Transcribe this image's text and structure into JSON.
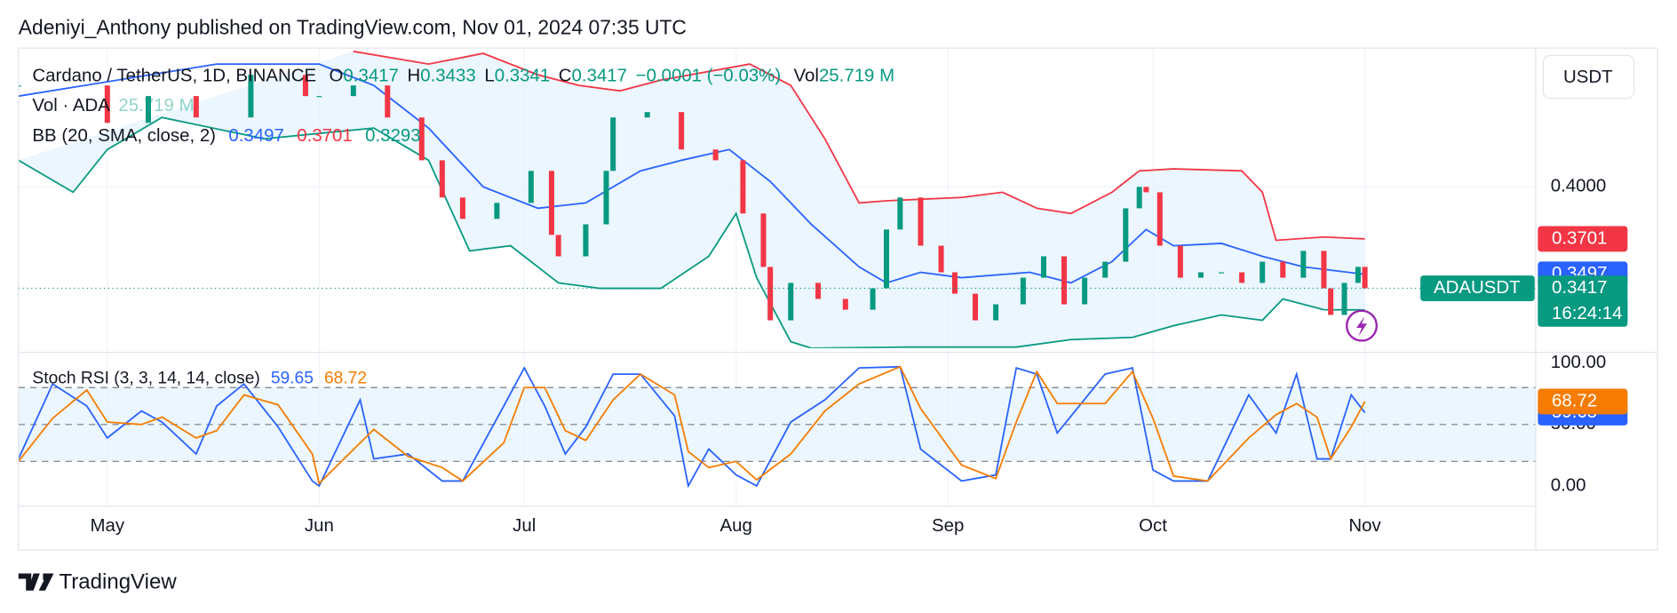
{
  "header": {
    "published": "Adeniyi_Anthony published on TradingView.com, Nov 01, 2024 07:35 UTC",
    "currency": "USDT",
    "brand": "TradingView"
  },
  "legend": {
    "symbol": "Cardano / TetherUS, 1D, BINANCE",
    "ohlc": [
      {
        "label": "O",
        "value": "0.3417"
      },
      {
        "label": "H",
        "value": "0.3433"
      },
      {
        "label": "L",
        "value": "0.3341"
      },
      {
        "label": "C",
        "value": "0.3417"
      }
    ],
    "change": "−0.0001 (−0.03%)",
    "vol_label": "Vol",
    "vol": "25.719 M",
    "vol_study": "Vol · ADA",
    "bb_study": "BB (20, SMA, close, 2)",
    "stoch_study": "Stoch RSI (3, 3, 14, 14, close)",
    "ticker": "ADAUSDT",
    "countdown": "16:24:14"
  },
  "chart_data": [
    {
      "type": "candlestick",
      "x": [
        0,
        13,
        19,
        26,
        34,
        42,
        44,
        49,
        54,
        59,
        62,
        65,
        70,
        75,
        78,
        79,
        83,
        86,
        87,
        92,
        97,
        102,
        106,
        109,
        110,
        113,
        117,
        121,
        125,
        127,
        129,
        132,
        135,
        137,
        140,
        143,
        147,
        150,
        153,
        156,
        159,
        162,
        164,
        165,
        167,
        170,
        173,
        176,
        179,
        182,
        185,
        188,
        191,
        192,
        194,
        196,
        197
      ],
      "close": [
        0.4583,
        0.4368,
        0.4522,
        0.4399,
        0.4644,
        0.4522,
        0.4522,
        0.4583,
        0.4399,
        0.4153,
        0.3939,
        0.3816,
        0.3908,
        0.4092,
        0.3724,
        0.3601,
        0.3785,
        0.4092,
        0.4399,
        0.443,
        0.4215,
        0.4153,
        0.3847,
        0.354,
        0.3233,
        0.3448,
        0.3356,
        0.3294,
        0.3417,
        0.3755,
        0.3939,
        0.3662,
        0.3509,
        0.3386,
        0.3233,
        0.3325,
        0.3478,
        0.3601,
        0.3325,
        0.3478,
        0.357,
        0.3877,
        0.4,
        0.3969,
        0.3662,
        0.3478,
        0.3509,
        0.3509,
        0.3448,
        0.357,
        0.3478,
        0.3632,
        0.3417,
        0.3264,
        0.3448,
        0.354,
        0.3417
      ],
      "up_color": "#089981",
      "down_color": "#f23645",
      "bb_upper": {
        "color": "#f23645",
        "x": [
          49,
          60,
          68,
          76,
          82,
          88,
          94,
          107,
          113,
          118,
          123,
          127,
          138,
          144,
          149,
          154,
          160,
          164,
          169,
          179,
          182,
          184,
          191,
          197
        ],
        "values": [
          0.4779,
          0.4706,
          0.4767,
          0.4644,
          0.4583,
          0.4552,
          0.4614,
          0.4706,
          0.4583,
          0.4276,
          0.3908,
          0.392,
          0.3939,
          0.3969,
          0.3877,
          0.3847,
          0.3969,
          0.4092,
          0.4104,
          0.4092,
          0.3969,
          0.3693,
          0.3712,
          0.3701
        ]
      },
      "bb_middle": {
        "color": "#2962ff",
        "x": [
          0,
          29,
          44,
          52,
          60,
          68,
          76,
          83,
          91,
          97,
          104,
          110,
          116,
          123,
          127,
          132,
          138,
          148,
          154,
          160,
          165,
          169,
          176,
          182,
          188,
          197
        ],
        "values": [
          0.4522,
          0.4706,
          0.4706,
          0.4583,
          0.4338,
          0.4,
          0.3877,
          0.3908,
          0.4092,
          0.4153,
          0.4215,
          0.4031,
          0.3785,
          0.354,
          0.3448,
          0.3509,
          0.3478,
          0.3509,
          0.3448,
          0.357,
          0.3755,
          0.3662,
          0.3675,
          0.3601,
          0.354,
          0.3497
        ]
      },
      "bb_lower": {
        "color": "#089981",
        "x": [
          0,
          8,
          13,
          21,
          36,
          52,
          60,
          66,
          72,
          79,
          85,
          94,
          101,
          105,
          108,
          113,
          116,
          130,
          146,
          154,
          163,
          169,
          176,
          182,
          185,
          191,
          197
        ],
        "values": [
          0.4153,
          0.3969,
          0.4215,
          0.4399,
          0.4276,
          0.4338,
          0.4153,
          0.3632,
          0.3662,
          0.3448,
          0.3417,
          0.3417,
          0.3601,
          0.3847,
          0.3478,
          0.311,
          0.3073,
          0.3079,
          0.3079,
          0.3122,
          0.3135,
          0.3202,
          0.3264,
          0.3233,
          0.3356,
          0.3294,
          0.3293
        ]
      },
      "band_fill": "#e3f2fd",
      "xlim": [
        0,
        222
      ],
      "xticks": [
        {
          "value": 13,
          "label": "May"
        },
        {
          "value": 44,
          "label": "Jun"
        },
        {
          "value": 74,
          "label": "Jul"
        },
        {
          "value": 105,
          "label": "Aug"
        },
        {
          "value": 136,
          "label": "Sep"
        },
        {
          "value": 166,
          "label": "Oct"
        },
        {
          "value": 197,
          "label": "Nov"
        }
      ],
      "ylim": [
        0.3073,
        0.4798
      ],
      "yticks": [
        {
          "value": 0.4,
          "label": "0.4000"
        }
      ],
      "grid": true
    },
    {
      "type": "line",
      "x": [
        0,
        5,
        10,
        13,
        18,
        21,
        26,
        29,
        33,
        38,
        43,
        44,
        50,
        52,
        57,
        62,
        65,
        71,
        74,
        77,
        80,
        83,
        87,
        91,
        96,
        98,
        101,
        105,
        108,
        113,
        118,
        123,
        129,
        132,
        138,
        143,
        146,
        149,
        152,
        159,
        163,
        166,
        169,
        174,
        180,
        184,
        187,
        190,
        192,
        195,
        197
      ],
      "series": [
        {
          "color": "#2962ff",
          "values": [
            22,
            83,
            65,
            39,
            61,
            52,
            26,
            65,
            83,
            48,
            4,
            0,
            70,
            22,
            26,
            4,
            4,
            65,
            96,
            65,
            26,
            48,
            91,
            91,
            57,
            0,
            30,
            9,
            0,
            52,
            70,
            96,
            97,
            30,
            4,
            9,
            96,
            91,
            43,
            91,
            96,
            13,
            4,
            4,
            74,
            43,
            91,
            22,
            22,
            74,
            59.65
          ]
        },
        {
          "color": "#f57c00",
          "values": [
            20,
            55,
            78,
            52,
            50,
            56,
            39,
            45,
            74,
            66,
            26,
            2,
            35,
            46,
            24,
            15,
            4,
            35,
            80,
            80,
            45,
            37,
            70,
            91,
            74,
            28,
            15,
            20,
            5,
            26,
            61,
            83,
            97,
            63,
            17,
            6,
            52,
            93,
            67,
            67,
            93,
            55,
            8,
            4,
            39,
            58,
            67,
            56,
            22,
            48,
            68.72
          ]
        }
      ],
      "xlim": [
        0,
        222
      ],
      "ylim": [
        -13,
        106
      ],
      "yticks": [
        {
          "value": 0,
          "label": "0.00"
        },
        {
          "value": 50,
          "label": "50.00"
        },
        {
          "value": 100,
          "label": "100.00"
        }
      ],
      "levels": [
        20,
        50,
        80
      ],
      "band_fill": "#e3f2fd"
    }
  ]
}
